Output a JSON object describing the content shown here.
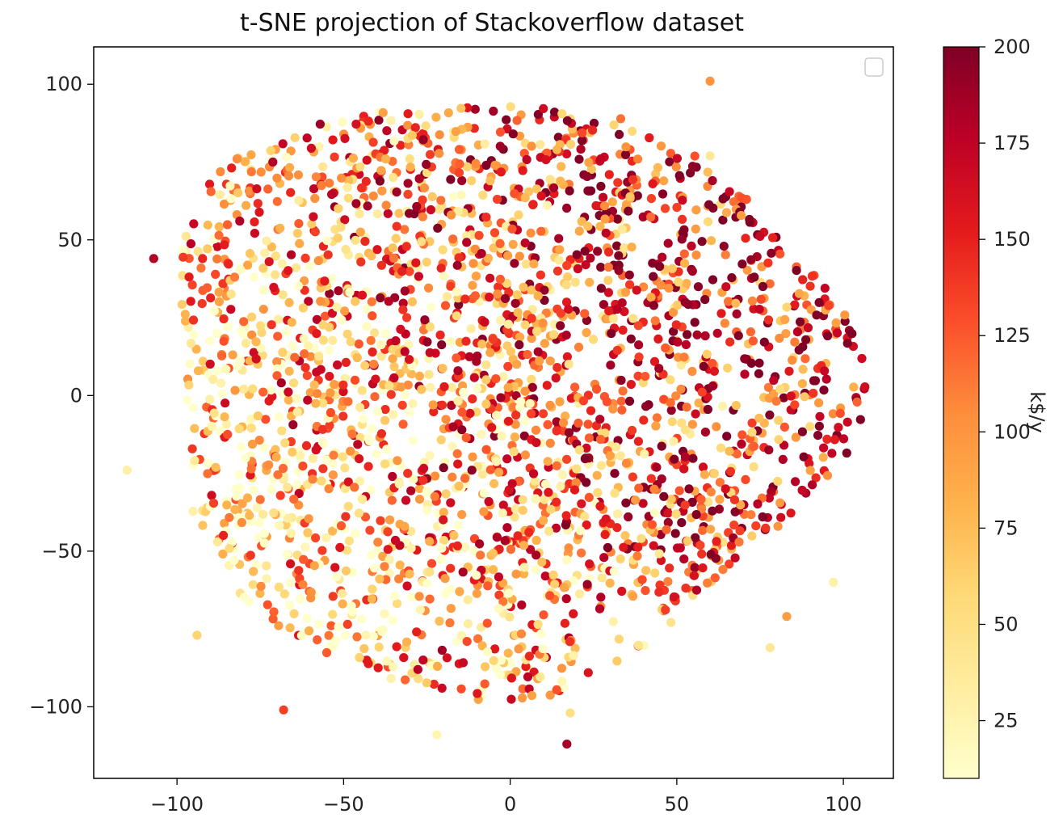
{
  "chart_data": {
    "type": "scatter",
    "title": "t-SNE projection of Stackoverflow dataset",
    "xlabel": "",
    "ylabel": "",
    "xlim": [
      -125,
      115
    ],
    "ylim": [
      -123,
      112
    ],
    "xticks": [
      -100,
      -50,
      0,
      50,
      100
    ],
    "xtick_labels": [
      "−100",
      "−50",
      "0",
      "50",
      "100"
    ],
    "yticks": [
      100,
      50,
      0,
      -50,
      -100
    ],
    "ytick_labels": [
      "100",
      "50",
      "0",
      "−50",
      "−100"
    ],
    "grid": false,
    "legend_placement": "top-right",
    "legend_entries": [],
    "colormap": "YlOrRd",
    "colormap_stops": [
      "#ffffcc",
      "#ffeda0",
      "#fed976",
      "#feb24c",
      "#fd8d3c",
      "#fc4e2a",
      "#e31a1c",
      "#bd0026",
      "#800026"
    ],
    "colorbar": {
      "label": "k$/y",
      "range": [
        10,
        200
      ],
      "ticks": [
        25,
        50,
        75,
        100,
        125,
        150,
        175,
        200
      ],
      "tick_labels": [
        "25",
        "50",
        "75",
        "100",
        "125",
        "150",
        "175",
        "200"
      ]
    },
    "cluster": {
      "point_count": 2600,
      "center": [
        -4,
        2
      ],
      "extent_x": [
        -100,
        104
      ],
      "extent_y": [
        -93,
        98
      ],
      "value_range": [
        10,
        200
      ],
      "note": "dense cloud of ~2600 points forming a roughly circular mass; warmer (higher) values concentrated in the right/top regions"
    },
    "outliers": [
      {
        "x": -107,
        "y": 44,
        "value": 180
      },
      {
        "x": -115,
        "y": -24,
        "value": 30
      },
      {
        "x": -94,
        "y": -77,
        "value": 60
      },
      {
        "x": -68,
        "y": -101,
        "value": 135
      },
      {
        "x": -22,
        "y": -109,
        "value": 25
      },
      {
        "x": 17,
        "y": -112,
        "value": 185
      },
      {
        "x": 18,
        "y": -102,
        "value": 50
      },
      {
        "x": 60,
        "y": 101,
        "value": 100
      },
      {
        "x": 60,
        "y": 77,
        "value": 40
      },
      {
        "x": 83,
        "y": -71,
        "value": 95
      },
      {
        "x": 78,
        "y": -81,
        "value": 40
      },
      {
        "x": 97,
        "y": -60,
        "value": 30
      }
    ]
  }
}
